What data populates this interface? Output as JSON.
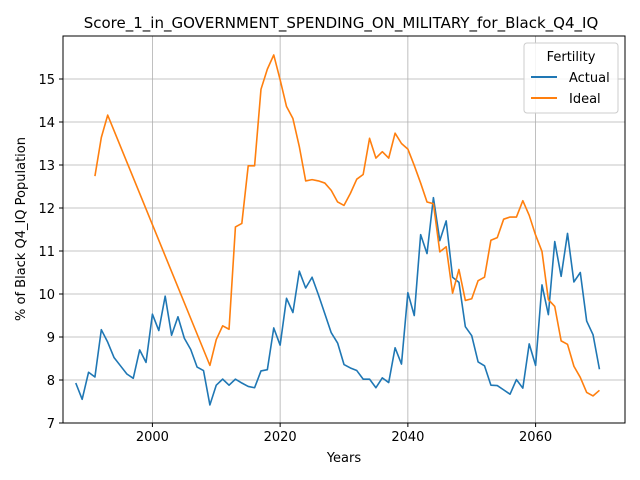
{
  "chart_data": {
    "type": "line",
    "title": "Score_1_in_GOVERNMENT_SPENDING_ON_MILITARY_for_Black_Q4_IQ",
    "xlabel": "Years",
    "ylabel": "% of Black Q4_IQ Population",
    "xlim": [
      1986,
      2074
    ],
    "ylim": [
      7,
      16
    ],
    "xticks": [
      2000,
      2020,
      2040,
      2060
    ],
    "xtick_labels": [
      "2000",
      "2020",
      "2040",
      "2060"
    ],
    "yticks": [
      7,
      8,
      9,
      10,
      11,
      12,
      13,
      14,
      15
    ],
    "ytick_labels": [
      "7",
      "8",
      "9",
      "10",
      "11",
      "12",
      "13",
      "14",
      "15"
    ],
    "grid": true,
    "legend": {
      "title": "Fertility",
      "placement": "top-right"
    },
    "series": [
      {
        "name": "Actual",
        "color": "#1f77b4",
        "x": [
          1988,
          1989,
          1990,
          1991,
          1992,
          1993,
          1994,
          1995,
          1996,
          1997,
          1998,
          1999,
          2000,
          2001,
          2002,
          2003,
          2004,
          2005,
          2006,
          2007,
          2008,
          2009,
          2010,
          2011,
          2012,
          2013,
          2014,
          2015,
          2016,
          2017,
          2018,
          2019,
          2020,
          2021,
          2022,
          2023,
          2024,
          2025,
          2026,
          2027,
          2028,
          2029,
          2030,
          2031,
          2032,
          2033,
          2034,
          2035,
          2036,
          2037,
          2038,
          2039,
          2040,
          2041,
          2042,
          2043,
          2044,
          2045,
          2046,
          2047,
          2048,
          2049,
          2050,
          2051,
          2052,
          2053,
          2054,
          2055,
          2056,
          2057,
          2058,
          2059,
          2060,
          2061,
          2062,
          2063,
          2064,
          2065,
          2066,
          2067,
          2068,
          2069,
          2070
        ],
        "values": [
          7.93,
          7.55,
          8.18,
          8.07,
          9.17,
          8.88,
          8.52,
          8.33,
          8.14,
          8.04,
          8.7,
          8.41,
          9.53,
          9.15,
          9.95,
          9.04,
          9.47,
          8.97,
          8.71,
          8.3,
          8.22,
          7.42,
          7.88,
          8.02,
          7.88,
          8.02,
          7.93,
          7.85,
          7.82,
          8.21,
          8.24,
          9.21,
          8.81,
          9.9,
          9.57,
          10.53,
          10.14,
          10.39,
          9.98,
          9.54,
          9.1,
          8.86,
          8.36,
          8.28,
          8.22,
          8.02,
          8.02,
          7.82,
          8.05,
          7.94,
          8.75,
          8.37,
          10.03,
          9.5,
          11.38,
          10.94,
          12.24,
          11.24,
          11.7,
          10.39,
          10.27,
          9.24,
          9.03,
          8.42,
          8.33,
          7.88,
          7.87,
          7.77,
          7.67,
          8.01,
          7.81,
          8.84,
          8.34,
          10.21,
          9.52,
          11.22,
          10.41,
          11.41,
          10.28,
          10.5,
          9.37,
          9.05,
          8.25
        ]
      },
      {
        "name": "Ideal",
        "color": "#ff7f0e",
        "x": [
          1991,
          1992,
          1993,
          2009,
          2010,
          2011,
          2012,
          2013,
          2014,
          2015,
          2016,
          2017,
          2018,
          2019,
          2020,
          2021,
          2022,
          2023,
          2024,
          2025,
          2026,
          2027,
          2028,
          2029,
          2030,
          2031,
          2032,
          2033,
          2034,
          2035,
          2036,
          2037,
          2038,
          2039,
          2040,
          2041,
          2042,
          2043,
          2044,
          2045,
          2046,
          2047,
          2048,
          2049,
          2050,
          2051,
          2052,
          2053,
          2054,
          2055,
          2056,
          2057,
          2058,
          2059,
          2060,
          2061,
          2062,
          2063,
          2064,
          2065,
          2066,
          2067,
          2068,
          2069,
          2070
        ],
        "values": [
          12.74,
          13.64,
          14.16,
          8.34,
          8.94,
          9.26,
          9.18,
          11.56,
          11.64,
          12.98,
          12.98,
          14.76,
          15.23,
          15.56,
          14.98,
          14.36,
          14.08,
          13.43,
          12.63,
          12.66,
          12.63,
          12.58,
          12.41,
          12.14,
          12.06,
          12.34,
          12.67,
          12.78,
          13.62,
          13.16,
          13.31,
          13.16,
          13.74,
          13.5,
          13.37,
          12.99,
          12.58,
          12.14,
          12.1,
          10.98,
          11.1,
          10.02,
          10.57,
          9.85,
          9.89,
          10.31,
          10.39,
          11.25,
          11.31,
          11.74,
          11.79,
          11.79,
          12.17,
          11.83,
          11.37,
          10.99,
          9.87,
          9.71,
          8.91,
          8.83,
          8.32,
          8.06,
          7.71,
          7.63,
          7.76
        ]
      }
    ]
  }
}
